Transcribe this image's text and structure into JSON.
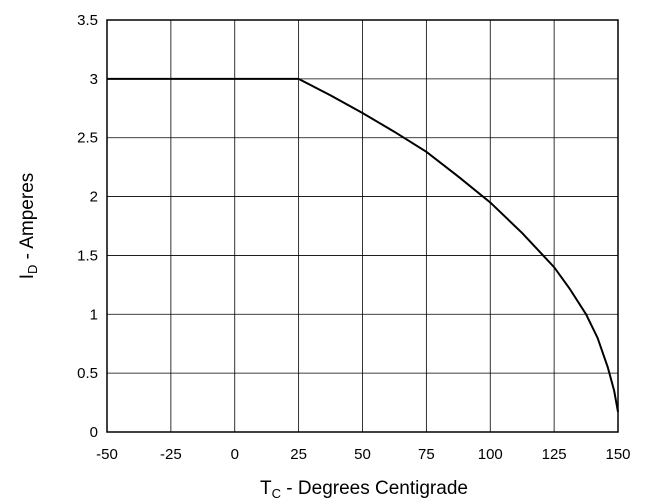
{
  "chart_data": {
    "type": "line",
    "title": "",
    "xlabel_main": "T",
    "xlabel_sub": "C",
    "xlabel_rest": " - Degrees Centigrade",
    "ylabel_main": "I",
    "ylabel_sub": "D",
    "ylabel_rest": " - Amperes",
    "xlim": [
      -50,
      150
    ],
    "ylim": [
      0,
      3.5
    ],
    "xticks": [
      -50,
      -25,
      0,
      25,
      50,
      75,
      100,
      125,
      150
    ],
    "xtick_labels": [
      "-50",
      "-25",
      "0",
      "25",
      "50",
      "75",
      "100",
      "125",
      "150"
    ],
    "yticks": [
      0,
      0.5,
      1,
      1.5,
      2,
      2.5,
      3,
      3.5
    ],
    "ytick_labels": [
      "0",
      "0.5",
      "1",
      "1.5",
      "2",
      "2.5",
      "3",
      "3.5"
    ],
    "grid": true,
    "line_color": "#000000",
    "series": [
      {
        "x": [
          -50,
          25,
          37.5,
          50,
          62.5,
          75,
          87.5,
          100,
          112.5,
          125,
          131,
          137.5,
          142,
          146,
          148.5,
          150
        ],
        "y": [
          3,
          3,
          2.86,
          2.71,
          2.55,
          2.38,
          2.17,
          1.95,
          1.69,
          1.4,
          1.22,
          1.0,
          0.8,
          0.55,
          0.35,
          0.17
        ]
      }
    ]
  }
}
